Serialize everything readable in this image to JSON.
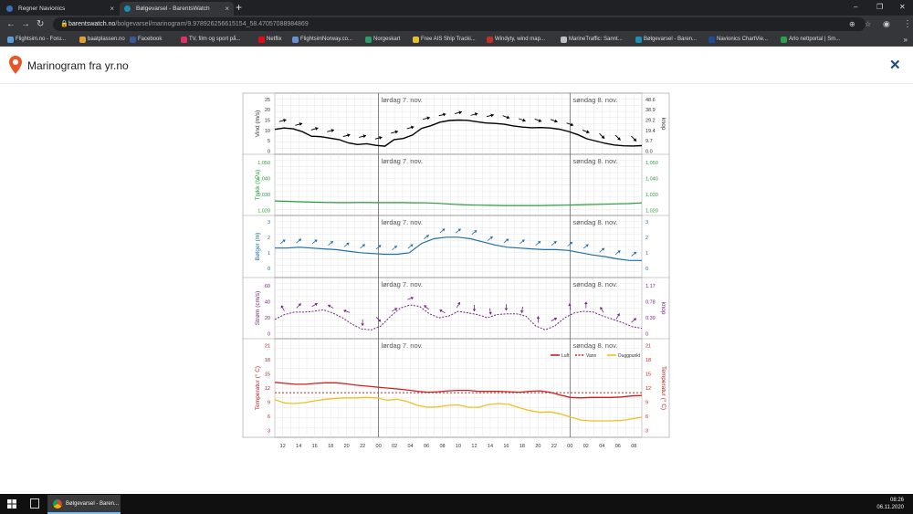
{
  "browser": {
    "tabs": [
      {
        "label": "Regner Navionics",
        "close": "×",
        "icon_color": "#3c6fb6"
      },
      {
        "label": "Bølgevarsel - BarentsWatch",
        "close": "×",
        "icon_color": "#1a8fb0"
      }
    ],
    "new_tab": "+",
    "window_controls": {
      "minimize": "–",
      "restore": "❐",
      "close": "✕"
    },
    "nav": {
      "back": "←",
      "forward": "→",
      "reload": "↻"
    },
    "url_host": "barentswatch.no",
    "url_path": "/bolgevarsel/marinogram/9.978926256615154_58.47057088984869",
    "omnibox_icons": {
      "lens": "⊕",
      "star": "☆",
      "menu": "⋮"
    },
    "bookmarks": [
      {
        "label": "Flightsim.no - Foru...",
        "icon": "#5aa0e0"
      },
      {
        "label": "baatplassen.no",
        "icon": "#e0a030"
      },
      {
        "label": "Facebook",
        "icon": "#3b5998"
      },
      {
        "label": "TV, film og sport på...",
        "icon": "#e0306a"
      },
      {
        "label": "Netflix",
        "icon": "#e50914"
      },
      {
        "label": "FlightsimNorway.co...",
        "icon": "#6a8fd0"
      },
      {
        "label": "Norgeskart",
        "icon": "#2a9d6a"
      },
      {
        "label": "Free AIS Ship Tracki...",
        "icon": "#e0c030"
      },
      {
        "label": "Windyty, wind map...",
        "icon": "#c0302a"
      },
      {
        "label": "MarineTraffic: Sannt...",
        "icon": "#c0c0c0"
      },
      {
        "label": "Bølgevarsel - Baren...",
        "icon": "#1a8fb0"
      },
      {
        "label": "Navionics ChartVie...",
        "icon": "#1a4d9a"
      },
      {
        "label": "Arlo nettportal | Sm...",
        "icon": "#2aa04a"
      }
    ],
    "bookmarks_more": "»"
  },
  "page": {
    "title": "Marinogram fra yr.no",
    "close_label": "✕"
  },
  "marinogram": {
    "day_labels": [
      "lørdag 7. nov.",
      "søndag 8. nov."
    ],
    "x_ticks": [
      "12",
      "14",
      "16",
      "18",
      "20",
      "22",
      "00",
      "02",
      "04",
      "06",
      "08",
      "10",
      "12",
      "14",
      "16",
      "18",
      "20",
      "22",
      "00",
      "02",
      "04",
      "06",
      "08"
    ],
    "panels": {
      "wind": {
        "ylabel": "Vind (m/s)",
        "ylabel_right": "knop",
        "y_ticks": [
          "0",
          "5",
          "10",
          "15",
          "20",
          "25"
        ],
        "y_ticks_right": [
          "0.0",
          "9.7",
          "19.4",
          "29.2",
          "38.9",
          "48.6"
        ],
        "color": "#000000"
      },
      "pressure": {
        "ylabel": "Trykk (hPa)",
        "y_ticks": [
          "1,020",
          "1,030",
          "1,040",
          "1,050"
        ],
        "color": "#2a9a3a"
      },
      "waves": {
        "ylabel": "Bølger (m)",
        "y_ticks": [
          "0",
          "1",
          "2",
          "3"
        ],
        "color": "#1f6fa8"
      },
      "current": {
        "ylabel": "Strøm (cm/s)",
        "ylabel_right": "knop",
        "y_ticks": [
          "0",
          "20",
          "40",
          "60"
        ],
        "y_ticks_right": [
          "0",
          "0.39",
          "0.78",
          "1.17"
        ],
        "color": "#7a1f8a"
      },
      "temperature": {
        "ylabel": "Temperatur (° C)",
        "ylabel_right": "Temperatur (° C)",
        "y_ticks": [
          "3",
          "6",
          "9",
          "12",
          "15",
          "18",
          "21"
        ],
        "color": "#c0202a",
        "legend": [
          "Luft",
          "Vann",
          "Duggpunkt"
        ],
        "legend_colors": [
          "#d02020",
          "#d02020",
          "#f0c020"
        ]
      }
    },
    "series": {
      "wind_ms": [
        10.5,
        11.2,
        10.8,
        9.4,
        7.2,
        7.0,
        6.3,
        5.6,
        4.0,
        3.2,
        3.6,
        2.8,
        2.4,
        5.6,
        6.1,
        7.8,
        11.0,
        12.3,
        14.0,
        14.8,
        15.0,
        14.9,
        14.2,
        13.6,
        13.4,
        13.0,
        12.2,
        11.6,
        11.3,
        11.4,
        11.2,
        10.6,
        9.5,
        8.0,
        6.0,
        4.9,
        3.8,
        3.0,
        2.6,
        2.5,
        2.7
      ],
      "pressure_hpa": [
        1026.0,
        1025.8,
        1025.5,
        1025.3,
        1025.1,
        1025.0,
        1025.0,
        1025.1,
        1025.0,
        1025.0,
        1025.0,
        1024.9,
        1024.8,
        1024.5,
        1024.0,
        1023.6,
        1023.4,
        1023.3,
        1023.2,
        1023.2,
        1023.2,
        1023.2,
        1023.3,
        1023.4,
        1023.6,
        1023.8,
        1024.0,
        1024.2,
        1024.4,
        1024.8
      ],
      "waves_m": [
        1.3,
        1.3,
        1.35,
        1.3,
        1.25,
        1.2,
        1.1,
        1.0,
        0.95,
        0.9,
        0.9,
        1.0,
        1.6,
        1.9,
        2.0,
        2.0,
        1.9,
        1.7,
        1.5,
        1.35,
        1.3,
        1.25,
        1.2,
        1.2,
        1.15,
        1.0,
        0.85,
        0.75,
        0.6,
        0.5,
        0.5
      ],
      "current_cms": [
        18,
        24,
        27,
        27,
        28,
        30,
        26,
        20,
        12,
        6,
        5,
        10,
        22,
        32,
        36,
        34,
        25,
        20,
        22,
        28,
        26,
        24,
        20,
        24,
        25,
        25,
        22,
        10,
        5,
        10,
        20,
        26,
        28,
        27,
        22,
        18,
        14,
        9,
        7
      ],
      "air_c": [
        13.2,
        13.0,
        12.8,
        12.8,
        13.0,
        13.1,
        13.1,
        12.9,
        12.6,
        12.4,
        12.2,
        12.0,
        11.8,
        11.6,
        11.3,
        11.1,
        11.2,
        11.4,
        11.5,
        11.5,
        11.3,
        11.3,
        11.3,
        11.2,
        11.1,
        11.3,
        11.4,
        11.1,
        10.5,
        10.0,
        9.9,
        10.0,
        10.0,
        10.0,
        10.1,
        10.3,
        10.4
      ],
      "water_c": 11.0,
      "dewpoint_c": [
        9.5,
        8.8,
        8.7,
        8.9,
        9.3,
        9.6,
        9.8,
        9.9,
        9.9,
        10.0,
        9.9,
        9.4,
        9.6,
        9.1,
        8.3,
        7.9,
        8.0,
        8.3,
        8.4,
        7.9,
        7.9,
        8.5,
        8.7,
        8.5,
        7.8,
        7.2,
        6.8,
        6.9,
        6.5,
        5.8,
        5.2,
        5.0,
        5.0,
        5.0,
        5.1,
        5.4,
        5.8
      ]
    }
  },
  "taskbar": {
    "task_label": "Bølgevarsel - Baren...",
    "time": "08:26",
    "date": "06.11.2020"
  }
}
